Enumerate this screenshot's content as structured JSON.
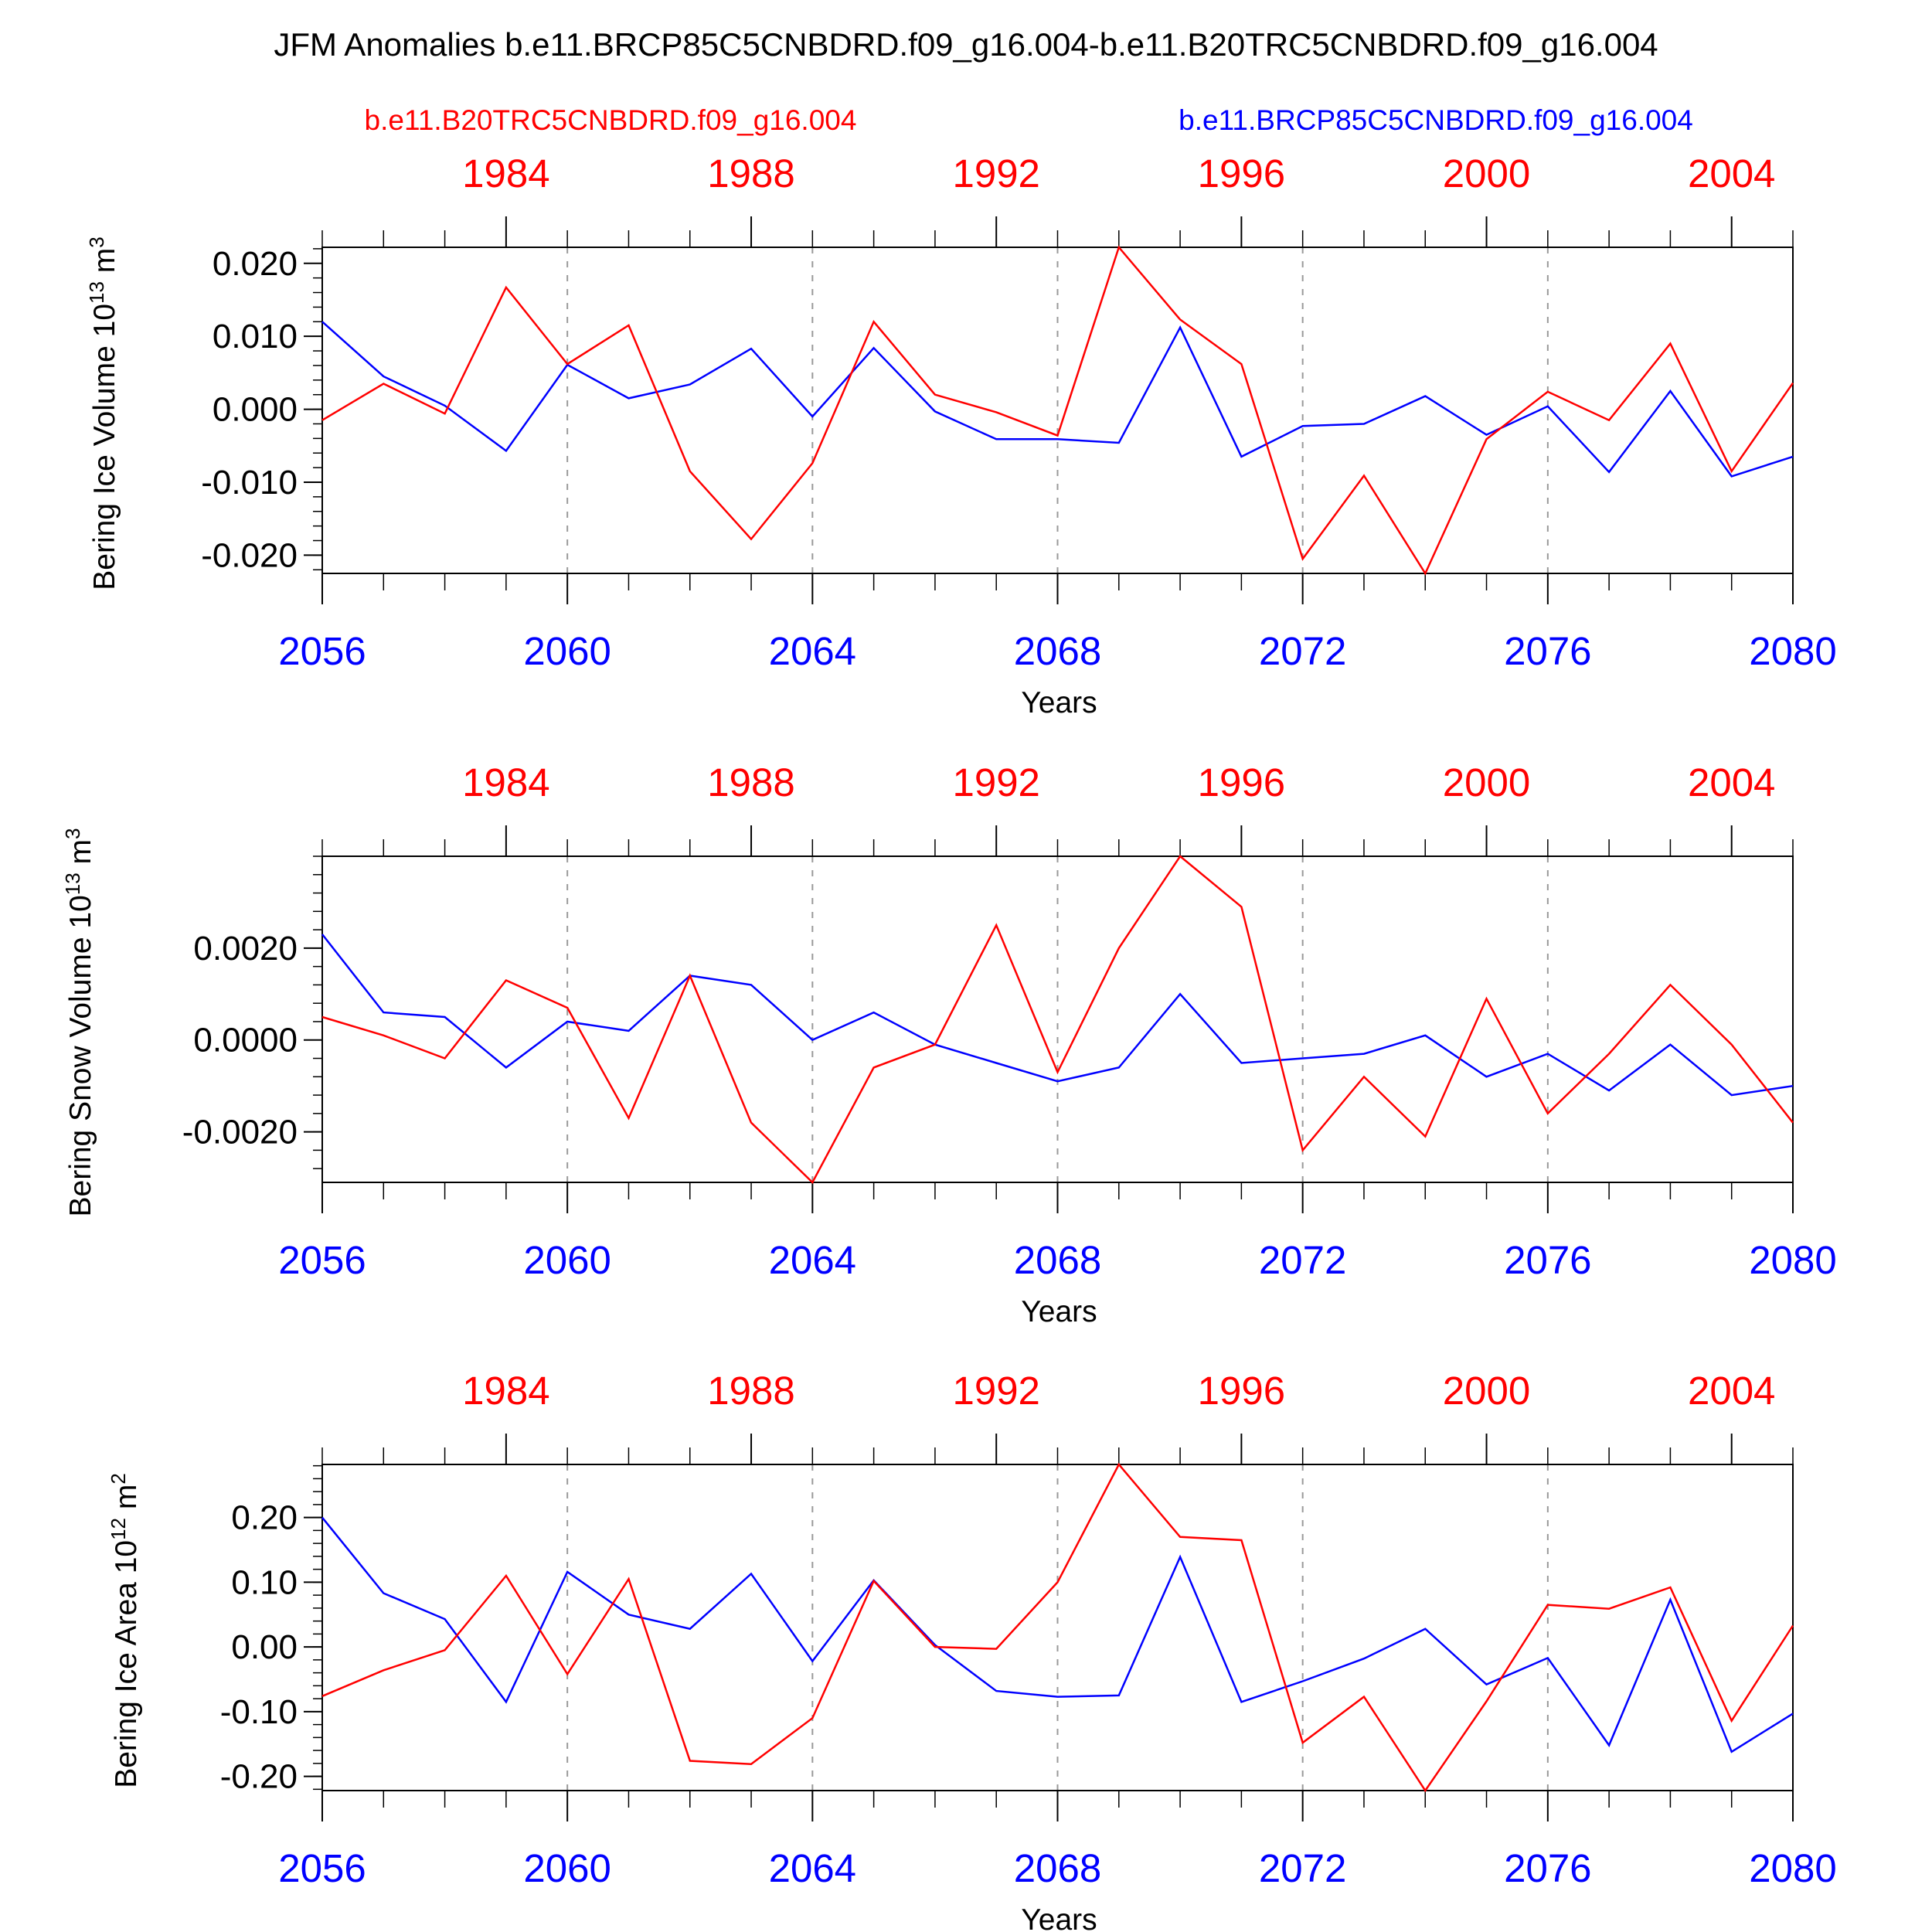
{
  "title": "JFM Anomalies b.e11.BRCP85C5CNBDRD.f09_g16.004-b.e11.B20TRC5CNBDRD.f09_g16.004",
  "legend": {
    "red": "b.e11.B20TRC5CNBDRD.f09_g16.004",
    "blue": "b.e11.BRCP85C5CNBDRD.f09_g16.004"
  },
  "colors": {
    "red": "#ff0000",
    "blue": "#0000ff",
    "axes": "#000000",
    "grid": "#999999"
  },
  "chart_data": [
    {
      "type": "line",
      "ylabel_main": "Bering Ice Volume 10",
      "ylabel_exp": "13",
      "ylabel_unit": " m",
      "ylabel_unit_exp": "3",
      "xlabel": "Years",
      "bottom_axis": {
        "ticks": [
          2056,
          2060,
          2064,
          2068,
          2072,
          2076,
          2080
        ],
        "xlim": [
          2056,
          2080
        ]
      },
      "top_axis": {
        "ticks": [
          1984,
          1988,
          1992,
          1996,
          2000,
          2004
        ],
        "xlim": [
          1981,
          2005
        ]
      },
      "ylim": [
        -0.0225,
        0.0222
      ],
      "yticks": [
        0.02,
        0.01,
        0.0,
        -0.01,
        -0.02
      ],
      "ytick_labels": [
        "0.020",
        "0.010",
        "0.000",
        "-0.010",
        "-0.020"
      ],
      "minor_step": 0.002,
      "dashed_grid_x": [
        2060,
        2064,
        2068,
        2072,
        2076
      ],
      "series": [
        {
          "name": "b.e11.BRCP85C5CNBDRD.f09_g16.004",
          "color": "blue",
          "x_start": 2056,
          "values": [
            0.012,
            0.0045,
            0.0005,
            -0.0057,
            0.0061,
            0.0015,
            0.0034,
            0.0083,
            -0.001,
            0.0084,
            -0.0003,
            -0.0041,
            -0.0041,
            -0.0046,
            0.0112,
            -0.0065,
            -0.0023,
            -0.002,
            0.0018,
            -0.0035,
            0.0004,
            -0.0086,
            0.0025,
            -0.0092,
            -0.0065
          ]
        },
        {
          "name": "b.e11.B20TRC5CNBDRD.f09_g16.004",
          "color": "red",
          "x_start": 2056,
          "values": [
            -0.0015,
            0.0035,
            -0.0006,
            0.0167,
            0.0062,
            0.0115,
            -0.0085,
            -0.0178,
            -0.0074,
            0.012,
            0.002,
            -0.0004,
            -0.0036,
            0.0222,
            0.0123,
            0.0062,
            -0.0205,
            -0.0091,
            -0.0225,
            -0.0041,
            0.0024,
            -0.0015,
            0.009,
            -0.0085,
            0.0036
          ]
        }
      ]
    },
    {
      "type": "line",
      "ylabel_main": "Bering Snow Volume 10",
      "ylabel_exp": "13",
      "ylabel_unit": " m",
      "ylabel_unit_exp": "3",
      "xlabel": "Years",
      "bottom_axis": {
        "ticks": [
          2056,
          2060,
          2064,
          2068,
          2072,
          2076,
          2080
        ],
        "xlim": [
          2056,
          2080
        ]
      },
      "top_axis": {
        "ticks": [
          1984,
          1988,
          1992,
          1996,
          2000,
          2004
        ],
        "xlim": [
          1981,
          2005
        ]
      },
      "ylim": [
        -0.0031,
        0.004
      ],
      "yticks": [
        0.002,
        0.0,
        -0.002
      ],
      "ytick_labels": [
        "0.0020",
        "0.0000",
        "-0.0020"
      ],
      "minor_step": 0.0004,
      "dashed_grid_x": [
        2060,
        2064,
        2068,
        2072,
        2076
      ],
      "series": [
        {
          "name": "b.e11.BRCP85C5CNBDRD.f09_g16.004",
          "color": "blue",
          "x_start": 2056,
          "values": [
            0.0023,
            0.0006,
            0.0005,
            -0.0006,
            0.0004,
            0.0002,
            0.0014,
            0.0012,
            0.0,
            0.0006,
            -0.0001,
            -0.0005,
            -0.0009,
            -0.0006,
            0.001,
            -0.0005,
            -0.0004,
            -0.0003,
            0.0001,
            -0.0008,
            -0.0003,
            -0.0011,
            -0.0001,
            -0.0012,
            -0.001
          ]
        },
        {
          "name": "b.e11.B20TRC5CNBDRD.f09_g16.004",
          "color": "red",
          "x_start": 2056,
          "values": [
            0.0005,
            0.0001,
            -0.0004,
            0.0013,
            0.0007,
            -0.0017,
            0.0014,
            -0.0018,
            -0.0031,
            -0.0006,
            -0.0001,
            0.0025,
            -0.0007,
            0.002,
            0.004,
            0.0029,
            -0.0024,
            -0.0008,
            -0.0021,
            0.0009,
            -0.0016,
            -0.0003,
            0.0012,
            -0.0001,
            -0.0018
          ]
        }
      ]
    },
    {
      "type": "line",
      "ylabel_main": "Bering Ice Area 10",
      "ylabel_exp": "12",
      "ylabel_unit": " m",
      "ylabel_unit_exp": "2",
      "xlabel": "Years",
      "bottom_axis": {
        "ticks": [
          2056,
          2060,
          2064,
          2068,
          2072,
          2076,
          2080
        ],
        "xlim": [
          2056,
          2080
        ]
      },
      "top_axis": {
        "ticks": [
          1984,
          1988,
          1992,
          1996,
          2000,
          2004
        ],
        "xlim": [
          1981,
          2005
        ]
      },
      "ylim": [
        -0.222,
        0.282
      ],
      "yticks": [
        0.2,
        0.1,
        0.0,
        -0.1,
        -0.2
      ],
      "ytick_labels": [
        "0.20",
        "0.10",
        "0.00",
        "-0.10",
        "-0.20"
      ],
      "minor_step": 0.02,
      "dashed_grid_x": [
        2060,
        2064,
        2068,
        2072,
        2076
      ],
      "series": [
        {
          "name": "b.e11.BRCP85C5CNBDRD.f09_g16.004",
          "color": "blue",
          "x_start": 2056,
          "values": [
            0.2,
            0.083,
            0.043,
            -0.085,
            0.116,
            0.05,
            0.028,
            0.113,
            -0.022,
            0.103,
            0.003,
            -0.068,
            -0.077,
            -0.075,
            0.139,
            -0.085,
            -0.053,
            -0.018,
            0.028,
            -0.058,
            -0.017,
            -0.152,
            0.073,
            -0.162,
            -0.103
          ]
        },
        {
          "name": "b.e11.B20TRC5CNBDRD.f09_g16.004",
          "color": "red",
          "x_start": 2056,
          "values": [
            -0.076,
            -0.036,
            -0.005,
            0.11,
            -0.042,
            0.105,
            -0.176,
            -0.181,
            -0.11,
            0.102,
            0.0,
            -0.003,
            0.1,
            0.282,
            0.17,
            0.165,
            -0.148,
            -0.077,
            -0.222,
            -0.084,
            0.065,
            0.059,
            0.092,
            -0.114,
            0.033
          ]
        }
      ]
    }
  ]
}
